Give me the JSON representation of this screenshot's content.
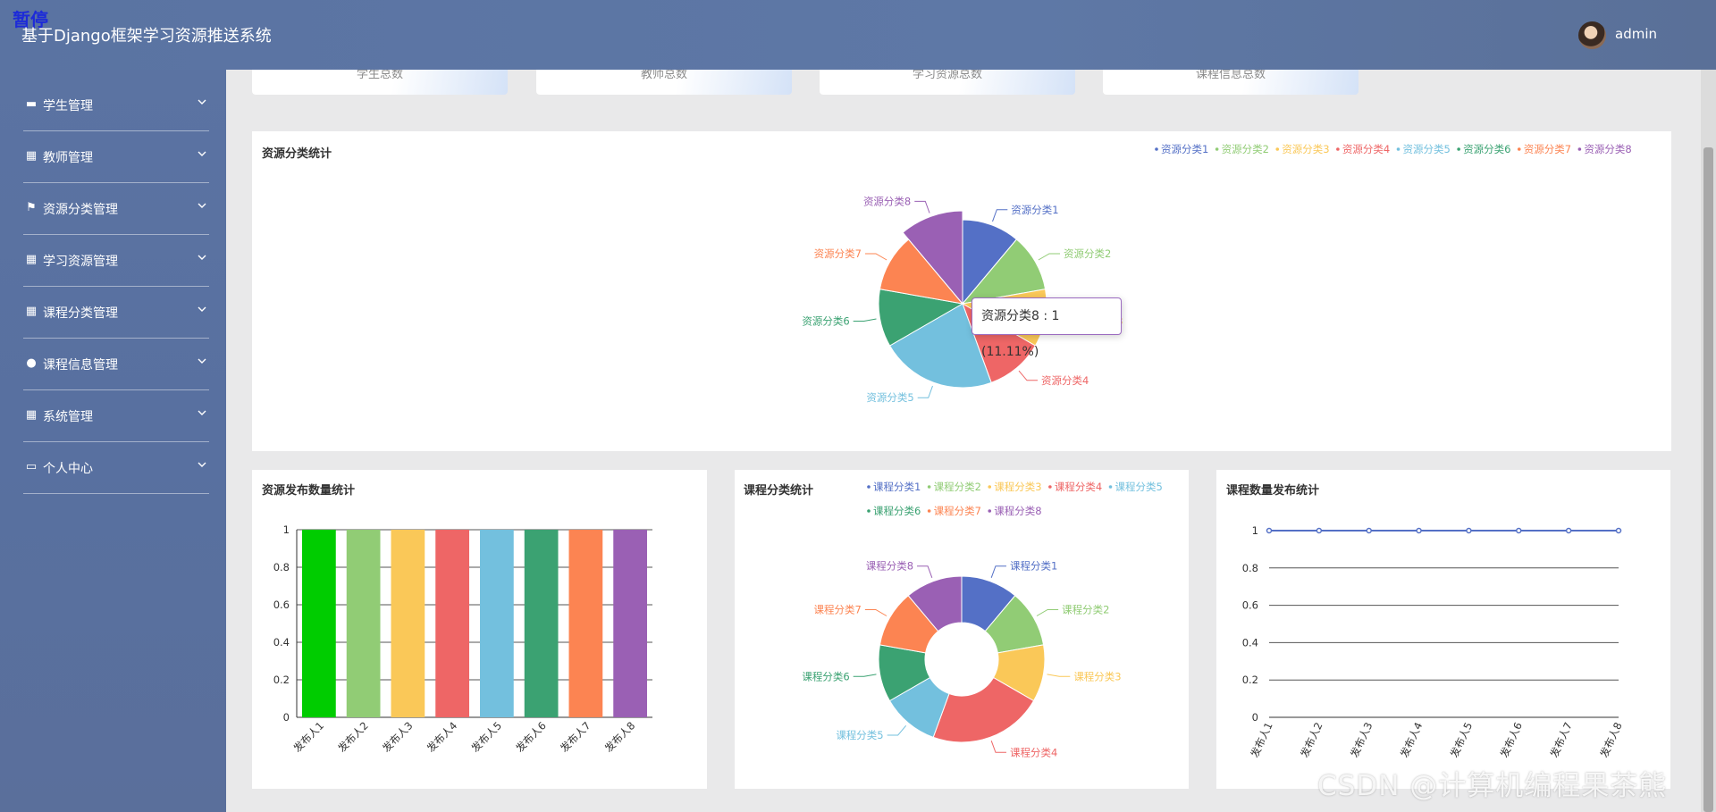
{
  "header": {
    "pause_label": "暂停",
    "title": "基于Django框架学习资源推送系统",
    "user": "admin"
  },
  "sidebar": {
    "items": [
      {
        "label": "学生管理",
        "icon": "chat-icon"
      },
      {
        "label": "教师管理",
        "icon": "grid-icon"
      },
      {
        "label": "资源分类管理",
        "icon": "flag-icon"
      },
      {
        "label": "学习资源管理",
        "icon": "grid-icon"
      },
      {
        "label": "课程分类管理",
        "icon": "grid-icon"
      },
      {
        "label": "课程信息管理",
        "icon": "bulb-icon"
      },
      {
        "label": "系统管理",
        "icon": "grid-icon"
      },
      {
        "label": "个人中心",
        "icon": "calendar-icon"
      }
    ]
  },
  "stats": [
    {
      "label": "学生总数"
    },
    {
      "label": "教师总数"
    },
    {
      "label": "学习资源总数"
    },
    {
      "label": "课程信息总数"
    }
  ],
  "colors": [
    "#5470c6",
    "#91cc75",
    "#fac858",
    "#ee6666",
    "#73c0de",
    "#3ba272",
    "#fc8452",
    "#9a60b4"
  ],
  "chart_data": [
    {
      "type": "pie",
      "title": "资源分类统计",
      "categories": [
        "资源分类1",
        "资源分类2",
        "资源分类3",
        "资源分类4",
        "资源分类5",
        "资源分类6",
        "资源分类7",
        "资源分类8"
      ],
      "values": [
        1,
        1,
        1,
        1,
        2,
        1,
        1,
        1
      ],
      "legend": "top-right",
      "tooltip": "资源分类8 : 1 (11.11%)",
      "highlighted": "资源分类8"
    },
    {
      "type": "bar",
      "title": "资源发布数量统计",
      "categories": [
        "发布人1",
        "发布人2",
        "发布人3",
        "发布人4",
        "发布人5",
        "发布人6",
        "发布人7",
        "发布人8"
      ],
      "values": [
        1,
        1,
        1,
        1,
        1,
        1,
        1,
        1
      ],
      "bar_colors": [
        "#00cc00",
        "#91cc75",
        "#fac858",
        "#ee6666",
        "#73c0de",
        "#3ba272",
        "#fc8452",
        "#9a60b4"
      ],
      "ylim": [
        0,
        1
      ],
      "yticks": [
        "0",
        "0.2",
        "0.4",
        "0.6",
        "0.8",
        "1"
      ],
      "grid": true
    },
    {
      "type": "pie",
      "title": "课程分类统计",
      "categories": [
        "课程分类1",
        "课程分类2",
        "课程分类3",
        "课程分类4",
        "课程分类5",
        "课程分类6",
        "课程分类7",
        "课程分类8"
      ],
      "values": [
        1,
        1,
        1,
        2,
        1,
        1,
        1,
        1
      ],
      "legend": "top",
      "donut": true
    },
    {
      "type": "line",
      "title": "课程数量发布统计",
      "categories": [
        "发布人1",
        "发布人2",
        "发布人3",
        "发布人4",
        "发布人5",
        "发布人6",
        "发布人7",
        "发布人8"
      ],
      "values": [
        1,
        1,
        1,
        1,
        1,
        1,
        1,
        1
      ],
      "ylim": [
        0,
        1
      ],
      "yticks": [
        "0",
        "0.2",
        "0.4",
        "0.6",
        "0.8",
        "1"
      ],
      "grid": true
    }
  ],
  "watermark": "CSDN @计算机编程果茶熊"
}
